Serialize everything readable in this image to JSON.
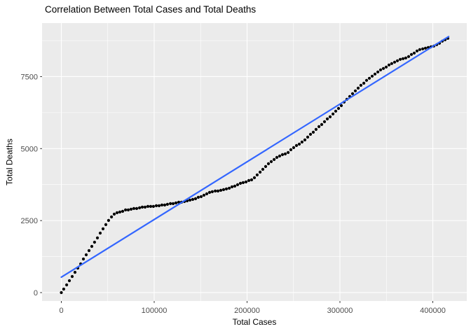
{
  "chart_data": {
    "type": "scatter",
    "title": "Correlation Between Total Cases and Total Deaths",
    "xlabel": "Total Cases",
    "ylabel": "Total Deaths",
    "grid": "on",
    "legend": "none",
    "axes": {
      "x_ticks": [
        0,
        100000,
        200000,
        300000,
        400000
      ],
      "x_tick_labels": [
        "0",
        "100000",
        "200000",
        "300000",
        "400000"
      ],
      "x_minor_ticks": [
        50000,
        150000,
        250000,
        350000
      ],
      "y_ticks": [
        0,
        2500,
        5000,
        7500
      ],
      "y_tick_labels": [
        "0",
        "2500",
        "5000",
        "7500"
      ],
      "y_minor_ticks": [
        1250,
        3750,
        6250,
        8750
      ],
      "xlim": [
        -20755,
        436604
      ],
      "ylim": [
        -292,
        9358
      ]
    },
    "colors": {
      "panel_bg": "#EBEBEB",
      "grid_major": "#FFFFFF",
      "grid_minor": "#FFFFFF",
      "point": "#000000",
      "trend": "#3366FF",
      "tick_mark": "#333333",
      "tick_label": "#4D4D4D",
      "axis_title": "#000000"
    },
    "series": [
      {
        "name": "daily cumulative totals",
        "cases": [
          0,
          2600,
          5700,
          8700,
          11700,
          14700,
          17700,
          20800,
          23800,
          26800,
          29800,
          32800,
          35800,
          38900,
          41900,
          44900,
          47900,
          50900,
          54000,
          57000,
          60000,
          63000,
          66000,
          69100,
          72100,
          75100,
          78100,
          81100,
          84200,
          87200,
          90200,
          93200,
          96200,
          99200,
          102300,
          105300,
          108300,
          111300,
          114300,
          117400,
          120400,
          123400,
          126400,
          129400,
          132500,
          135500,
          138500,
          141500,
          144500,
          147500,
          150600,
          153600,
          156600,
          159600,
          162600,
          165700,
          168700,
          171700,
          174700,
          177700,
          180800,
          183800,
          186800,
          189800,
          192800,
          195800,
          198900,
          201900,
          204900,
          207900,
          210900,
          214000,
          217000,
          220000,
          223000,
          226000,
          229100,
          232100,
          235100,
          238100,
          241100,
          244200,
          247200,
          250200,
          253200,
          256200,
          259200,
          262300,
          265300,
          268300,
          271300,
          274300,
          277400,
          280400,
          283400,
          286400,
          289400,
          292500,
          295500,
          298500,
          301500,
          304500,
          307500,
          310600,
          313600,
          316600,
          319600,
          322600,
          325700,
          328700,
          331700,
          334700,
          337700,
          340800,
          343800,
          346800,
          349800,
          352800,
          355800,
          358900,
          361900,
          364900,
          367900,
          370900,
          374000,
          377000,
          380000,
          383000,
          386000,
          389100,
          392100,
          395100,
          398100,
          401100,
          404200,
          407200,
          410200,
          413200,
          416200
        ],
        "deaths": [
          0,
          122,
          268,
          413,
          559,
          705,
          851,
          997,
          1167,
          1313,
          1459,
          1605,
          1751,
          1897,
          2067,
          2213,
          2359,
          2505,
          2627,
          2724,
          2772,
          2797,
          2821,
          2870,
          2870,
          2894,
          2918,
          2918,
          2943,
          2967,
          2967,
          2991,
          2991,
          2991,
          3016,
          3016,
          3040,
          3040,
          3064,
          3089,
          3089,
          3113,
          3137,
          3137,
          3162,
          3186,
          3210,
          3235,
          3259,
          3308,
          3332,
          3381,
          3429,
          3478,
          3502,
          3526,
          3526,
          3551,
          3575,
          3599,
          3624,
          3672,
          3697,
          3745,
          3794,
          3818,
          3843,
          3891,
          3916,
          3989,
          4086,
          4183,
          4280,
          4378,
          4475,
          4548,
          4621,
          4694,
          4742,
          4791,
          4815,
          4864,
          4961,
          5034,
          5107,
          5156,
          5229,
          5302,
          5399,
          5496,
          5569,
          5666,
          5764,
          5837,
          5934,
          6031,
          6104,
          6202,
          6299,
          6396,
          6493,
          6615,
          6712,
          6810,
          6907,
          7004,
          7101,
          7198,
          7271,
          7369,
          7442,
          7515,
          7588,
          7661,
          7734,
          7782,
          7831,
          7904,
          7953,
          8001,
          8050,
          8099,
          8123,
          8147,
          8196,
          8269,
          8318,
          8391,
          8439,
          8464,
          8488,
          8512,
          8537,
          8561,
          8610,
          8658,
          8731,
          8780,
          8829
        ]
      }
    ],
    "trend_line": {
      "x1": 0,
      "y1": 535,
      "x2": 417000,
      "y2": 8890
    }
  }
}
